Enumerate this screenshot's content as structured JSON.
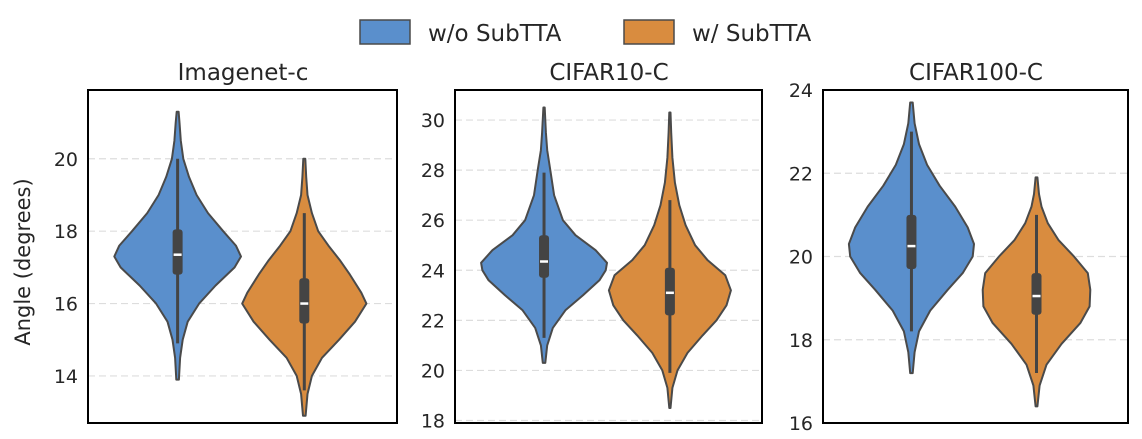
{
  "legend": {
    "items": [
      {
        "label": "w/o SubTTA",
        "color": "#5a8fcc"
      },
      {
        "label": "w/ SubTTA",
        "color": "#d98c3f"
      }
    ]
  },
  "chart_data": [
    {
      "type": "violin",
      "title": "Imagenet-c",
      "ylabel": "Angle (degrees)",
      "ylim": [
        12.7,
        21.9
      ],
      "yticks": [
        "14",
        "16",
        "18",
        "20"
      ],
      "grid": true,
      "categories": [
        "w/o SubTTA",
        "w/ SubTTA"
      ],
      "series": [
        {
          "name": "w/o SubTTA",
          "color": "#5a8fcc",
          "min": 13.9,
          "max": 21.3,
          "q1": 16.8,
          "median": 17.35,
          "q3": 18.05,
          "whisker_low": 14.9,
          "whisker_high": 20.0,
          "density": [
            [
              13.9,
              0.02
            ],
            [
              14.5,
              0.04
            ],
            [
              15.0,
              0.08
            ],
            [
              15.5,
              0.16
            ],
            [
              16.0,
              0.34
            ],
            [
              16.5,
              0.6
            ],
            [
              17.0,
              0.9
            ],
            [
              17.3,
              1.0
            ],
            [
              17.6,
              0.92
            ],
            [
              18.0,
              0.72
            ],
            [
              18.5,
              0.48
            ],
            [
              19.0,
              0.3
            ],
            [
              19.5,
              0.18
            ],
            [
              20.0,
              0.09
            ],
            [
              20.5,
              0.05
            ],
            [
              21.0,
              0.03
            ],
            [
              21.3,
              0.015
            ]
          ]
        },
        {
          "name": "w/ SubTTA",
          "color": "#d98c3f",
          "min": 12.9,
          "max": 20.0,
          "q1": 15.45,
          "median": 16.0,
          "q3": 16.7,
          "whisker_low": 13.6,
          "whisker_high": 18.5,
          "density": [
            [
              12.9,
              0.02
            ],
            [
              13.5,
              0.05
            ],
            [
              14.0,
              0.12
            ],
            [
              14.5,
              0.28
            ],
            [
              15.0,
              0.55
            ],
            [
              15.5,
              0.8
            ],
            [
              16.0,
              0.98
            ],
            [
              16.3,
              0.9
            ],
            [
              16.8,
              0.72
            ],
            [
              17.2,
              0.56
            ],
            [
              17.6,
              0.38
            ],
            [
              18.0,
              0.22
            ],
            [
              18.5,
              0.12
            ],
            [
              19.0,
              0.05
            ],
            [
              19.5,
              0.03
            ],
            [
              20.0,
              0.015
            ]
          ]
        }
      ]
    },
    {
      "type": "violin",
      "title": "CIFAR10-C",
      "ylabel": "",
      "ylim": [
        17.9,
        31.2
      ],
      "yticks": [
        "18",
        "20",
        "22",
        "24",
        "26",
        "28",
        "30"
      ],
      "grid": true,
      "categories": [
        "w/o SubTTA",
        "w/ SubTTA"
      ],
      "series": [
        {
          "name": "w/o SubTTA",
          "color": "#5a8fcc",
          "min": 20.3,
          "max": 30.5,
          "q1": 23.7,
          "median": 24.35,
          "q3": 25.4,
          "whisker_low": 21.3,
          "whisker_high": 27.9,
          "density": [
            [
              20.3,
              0.02
            ],
            [
              21.0,
              0.05
            ],
            [
              21.7,
              0.14
            ],
            [
              22.4,
              0.34
            ],
            [
              23.0,
              0.62
            ],
            [
              23.6,
              0.88
            ],
            [
              24.0,
              0.98
            ],
            [
              24.3,
              1.0
            ],
            [
              24.8,
              0.82
            ],
            [
              25.4,
              0.5
            ],
            [
              26.0,
              0.3
            ],
            [
              27.0,
              0.16
            ],
            [
              28.0,
              0.1
            ],
            [
              28.8,
              0.05
            ],
            [
              29.5,
              0.03
            ],
            [
              30.5,
              0.01
            ]
          ]
        },
        {
          "name": "w/ SubTTA",
          "color": "#d98c3f",
          "min": 18.5,
          "max": 30.3,
          "q1": 22.2,
          "median": 23.1,
          "q3": 24.1,
          "whisker_low": 19.9,
          "whisker_high": 26.8,
          "density": [
            [
              18.5,
              0.01
            ],
            [
              19.3,
              0.04
            ],
            [
              20.0,
              0.12
            ],
            [
              20.7,
              0.28
            ],
            [
              21.4,
              0.52
            ],
            [
              22.0,
              0.74
            ],
            [
              22.6,
              0.9
            ],
            [
              23.2,
              0.97
            ],
            [
              23.8,
              0.88
            ],
            [
              24.4,
              0.6
            ],
            [
              25.0,
              0.4
            ],
            [
              25.8,
              0.25
            ],
            [
              26.6,
              0.15
            ],
            [
              27.5,
              0.08
            ],
            [
              28.5,
              0.04
            ],
            [
              29.5,
              0.02
            ],
            [
              30.3,
              0.01
            ]
          ]
        }
      ]
    },
    {
      "type": "violin",
      "title": "CIFAR100-C",
      "ylabel": "",
      "ylim": [
        16.0,
        24.0
      ],
      "yticks": [
        "16",
        "18",
        "20",
        "22",
        "24"
      ],
      "grid": true,
      "categories": [
        "w/o SubTTA",
        "w/ SubTTA"
      ],
      "series": [
        {
          "name": "w/o SubTTA",
          "color": "#5a8fcc",
          "min": 17.2,
          "max": 23.7,
          "q1": 19.7,
          "median": 20.25,
          "q3": 21.0,
          "whisker_low": 18.2,
          "whisker_high": 23.0,
          "density": [
            [
              17.2,
              0.02
            ],
            [
              17.7,
              0.05
            ],
            [
              18.2,
              0.12
            ],
            [
              18.7,
              0.3
            ],
            [
              19.2,
              0.58
            ],
            [
              19.6,
              0.82
            ],
            [
              20.0,
              0.98
            ],
            [
              20.3,
              1.0
            ],
            [
              20.7,
              0.9
            ],
            [
              21.2,
              0.7
            ],
            [
              21.7,
              0.45
            ],
            [
              22.2,
              0.25
            ],
            [
              22.7,
              0.12
            ],
            [
              23.2,
              0.05
            ],
            [
              23.7,
              0.02
            ]
          ]
        },
        {
          "name": "w/ SubTTA",
          "color": "#d98c3f",
          "min": 16.4,
          "max": 21.9,
          "q1": 18.6,
          "median": 19.05,
          "q3": 19.6,
          "whisker_low": 17.2,
          "whisker_high": 21.0,
          "density": [
            [
              16.4,
              0.015
            ],
            [
              16.9,
              0.05
            ],
            [
              17.4,
              0.16
            ],
            [
              17.9,
              0.4
            ],
            [
              18.4,
              0.7
            ],
            [
              18.8,
              0.85
            ],
            [
              19.2,
              0.86
            ],
            [
              19.6,
              0.82
            ],
            [
              20.0,
              0.6
            ],
            [
              20.4,
              0.35
            ],
            [
              20.8,
              0.18
            ],
            [
              21.2,
              0.08
            ],
            [
              21.5,
              0.04
            ],
            [
              21.9,
              0.015
            ]
          ]
        }
      ]
    }
  ]
}
